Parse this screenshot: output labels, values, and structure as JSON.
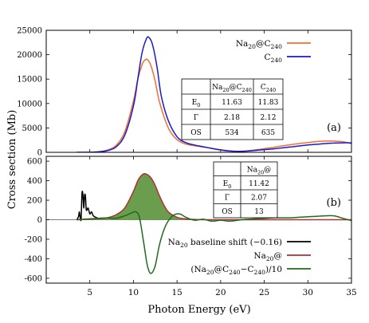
{
  "figure": {
    "ylabel": "Cross section (Mb)",
    "xlabel": "Photon Energy (eV)"
  },
  "chart_data": [
    {
      "panel": "(a)",
      "type": "line",
      "xlim": [
        0,
        35
      ],
      "ylim": [
        0,
        25000
      ],
      "x_ticks": [
        5,
        10,
        15,
        20,
        25,
        30,
        35
      ],
      "y_ticks": [
        0,
        5000,
        10000,
        15000,
        20000,
        25000
      ],
      "legend_position": "top-right",
      "series": [
        {
          "name": "Na20@C240",
          "color": "#f07030",
          "points": [
            [
              3.5,
              0
            ],
            [
              5,
              20
            ],
            [
              6,
              120
            ],
            [
              7,
              450
            ],
            [
              8,
              1400
            ],
            [
              9,
              4200
            ],
            [
              10,
              10500
            ],
            [
              10.5,
              15000
            ],
            [
              11,
              18000
            ],
            [
              11.3,
              18900
            ],
            [
              11.6,
              19000
            ],
            [
              12,
              17800
            ],
            [
              12.5,
              14500
            ],
            [
              13,
              10200
            ],
            [
              14,
              5000
            ],
            [
              15,
              2600
            ],
            [
              16,
              1700
            ],
            [
              17,
              1350
            ],
            [
              18,
              1100
            ],
            [
              19,
              800
            ],
            [
              20,
              450
            ],
            [
              21,
              250
            ],
            [
              22,
              200
            ],
            [
              23,
              300
            ],
            [
              24,
              500
            ],
            [
              25,
              750
            ],
            [
              26,
              1000
            ],
            [
              27,
              1300
            ],
            [
              28,
              1550
            ],
            [
              29,
              1800
            ],
            [
              30,
              2000
            ],
            [
              31,
              2200
            ],
            [
              32,
              2300
            ],
            [
              33,
              2300
            ],
            [
              34,
              2150
            ],
            [
              35,
              1800
            ]
          ]
        },
        {
          "name": "C240",
          "color": "#1a1acc",
          "points": [
            [
              3.5,
              0
            ],
            [
              5,
              10
            ],
            [
              6,
              90
            ],
            [
              7,
              350
            ],
            [
              8,
              1100
            ],
            [
              9,
              3500
            ],
            [
              10,
              9500
            ],
            [
              10.5,
              15000
            ],
            [
              11,
              20500
            ],
            [
              11.5,
              23300
            ],
            [
              11.8,
              23500
            ],
            [
              12.2,
              22000
            ],
            [
              12.7,
              17500
            ],
            [
              13.2,
              11500
            ],
            [
              14,
              6500
            ],
            [
              15,
              3200
            ],
            [
              16,
              2000
            ],
            [
              17,
              1500
            ],
            [
              18,
              1150
            ],
            [
              19,
              800
            ],
            [
              20,
              500
            ],
            [
              21,
              300
            ],
            [
              22,
              200
            ],
            [
              23,
              250
            ],
            [
              24,
              400
            ],
            [
              25,
              550
            ],
            [
              26,
              700
            ],
            [
              27,
              900
            ],
            [
              28,
              1100
            ],
            [
              29,
              1300
            ],
            [
              30,
              1500
            ],
            [
              31,
              1650
            ],
            [
              32,
              1800
            ],
            [
              33,
              1900
            ],
            [
              34,
              1950
            ],
            [
              35,
              1950
            ]
          ]
        }
      ],
      "table": {
        "columns": [
          "",
          "Na20@C240",
          "C240"
        ],
        "rows": [
          [
            "E0",
            "11.63",
            "11.83"
          ],
          [
            "Γ",
            "2.18",
            "2.12"
          ],
          [
            "OS",
            "534",
            "635"
          ]
        ]
      }
    },
    {
      "panel": "(b)",
      "type": "line",
      "xlim": [
        0,
        35
      ],
      "ylim": [
        -650,
        650
      ],
      "x_ticks": [
        5,
        10,
        15,
        20,
        25,
        30,
        35
      ],
      "y_ticks": [
        -600,
        -400,
        -200,
        0,
        200,
        400,
        600
      ],
      "legend_position": "bottom-right",
      "series": [
        {
          "name": "Na20 baseline shift (−0.16)",
          "color": "#000000",
          "points": [
            [
              3.5,
              0
            ],
            [
              3.7,
              30
            ],
            [
              3.8,
              80
            ],
            [
              3.9,
              20
            ],
            [
              4.0,
              10
            ],
            [
              4.1,
              270
            ],
            [
              4.2,
              260
            ],
            [
              4.3,
              120
            ],
            [
              4.4,
              250
            ],
            [
              4.5,
              240
            ],
            [
              4.6,
              100
            ],
            [
              4.8,
              120
            ],
            [
              5.0,
              60
            ],
            [
              5.2,
              80
            ],
            [
              5.4,
              40
            ],
            [
              5.8,
              20
            ],
            [
              6.2,
              10
            ]
          ]
        },
        {
          "name": "Na20@",
          "color": "#b03030",
          "fill": "#6a9e4e",
          "points": [
            [
              3.5,
              0
            ],
            [
              5,
              5
            ],
            [
              6,
              10
            ],
            [
              7,
              20
            ],
            [
              8,
              50
            ],
            [
              9,
              120
            ],
            [
              10,
              290
            ],
            [
              10.5,
              400
            ],
            [
              11,
              460
            ],
            [
              11.4,
              470
            ],
            [
              12,
              430
            ],
            [
              12.5,
              350
            ],
            [
              13,
              240
            ],
            [
              13.5,
              150
            ],
            [
              14,
              80
            ],
            [
              15,
              25
            ],
            [
              16,
              8
            ],
            [
              17,
              3
            ],
            [
              18,
              0
            ],
            [
              20,
              0
            ],
            [
              25,
              0
            ],
            [
              30,
              0
            ],
            [
              35,
              0
            ]
          ]
        },
        {
          "name": "(Na20@C240−C240)/10",
          "color": "#1e6b1e",
          "points": [
            [
              3.5,
              0
            ],
            [
              6,
              15
            ],
            [
              7,
              20
            ],
            [
              8,
              15
            ],
            [
              9,
              40
            ],
            [
              9.8,
              70
            ],
            [
              10.3,
              80
            ],
            [
              10.7,
              20
            ],
            [
              11.2,
              -250
            ],
            [
              11.6,
              -470
            ],
            [
              12,
              -550
            ],
            [
              12.5,
              -470
            ],
            [
              13,
              -250
            ],
            [
              13.7,
              -60
            ],
            [
              14.5,
              40
            ],
            [
              15.3,
              60
            ],
            [
              16,
              25
            ],
            [
              17,
              -5
            ],
            [
              18,
              5
            ],
            [
              19,
              -15
            ],
            [
              20,
              -5
            ],
            [
              21,
              -15
            ],
            [
              22,
              -5
            ],
            [
              23,
              5
            ],
            [
              24,
              10
            ],
            [
              25,
              15
            ],
            [
              26,
              20
            ],
            [
              27,
              20
            ],
            [
              28,
              20
            ],
            [
              29,
              25
            ],
            [
              30,
              30
            ],
            [
              31,
              35
            ],
            [
              32,
              40
            ],
            [
              33,
              40
            ],
            [
              34,
              15
            ],
            [
              35,
              -10
            ]
          ]
        }
      ],
      "table": {
        "columns": [
          "",
          "Na20@"
        ],
        "rows": [
          [
            "E0",
            "11.42"
          ],
          [
            "Γ",
            "2.07"
          ],
          [
            "OS",
            "13"
          ]
        ]
      }
    }
  ]
}
